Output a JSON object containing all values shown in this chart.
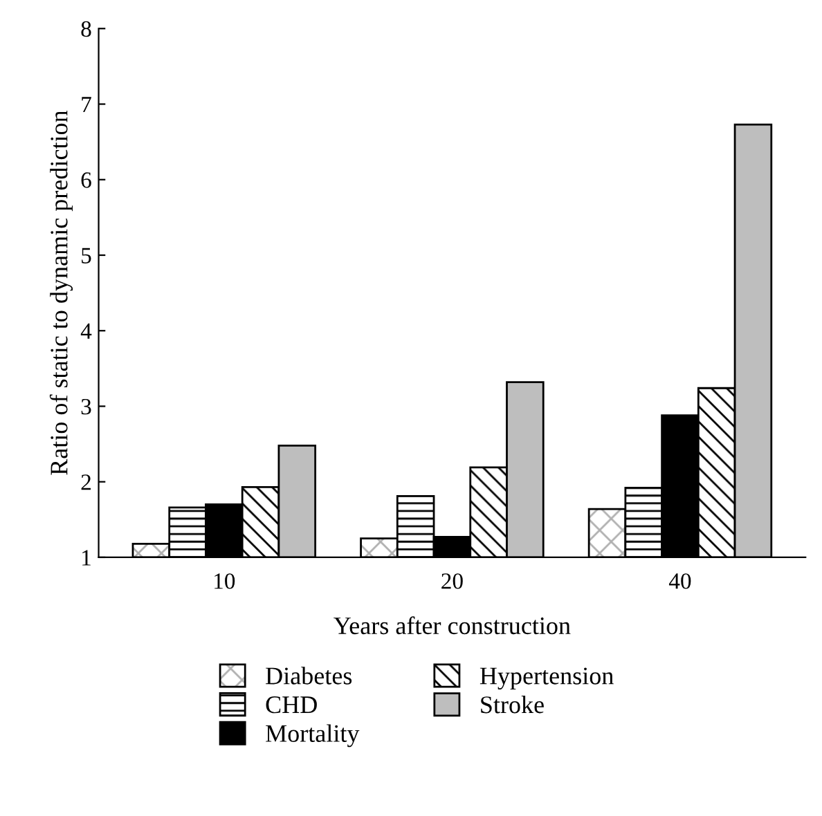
{
  "chart_data": {
    "type": "bar",
    "xlabel": "Years after construction",
    "ylabel": "Ratio of static to dynamic prediction",
    "categories": [
      "10",
      "20",
      "40"
    ],
    "series": [
      {
        "name": "Diabetes",
        "values": [
          1.18,
          1.25,
          1.64
        ]
      },
      {
        "name": "CHD",
        "values": [
          1.66,
          1.81,
          1.92
        ]
      },
      {
        "name": "Mortality",
        "color": "#000000",
        "values": [
          1.7,
          1.27,
          2.88
        ]
      },
      {
        "name": "Hypertension",
        "values": [
          1.93,
          2.19,
          3.24
        ]
      },
      {
        "name": "Stroke",
        "color": "#bebebe",
        "values": [
          2.48,
          3.32,
          6.73
        ]
      }
    ],
    "ylim": [
      1,
      8
    ],
    "yticks": [
      1,
      2,
      3,
      4,
      5,
      6,
      7,
      8
    ],
    "grid": false,
    "legend": "bottom left"
  }
}
